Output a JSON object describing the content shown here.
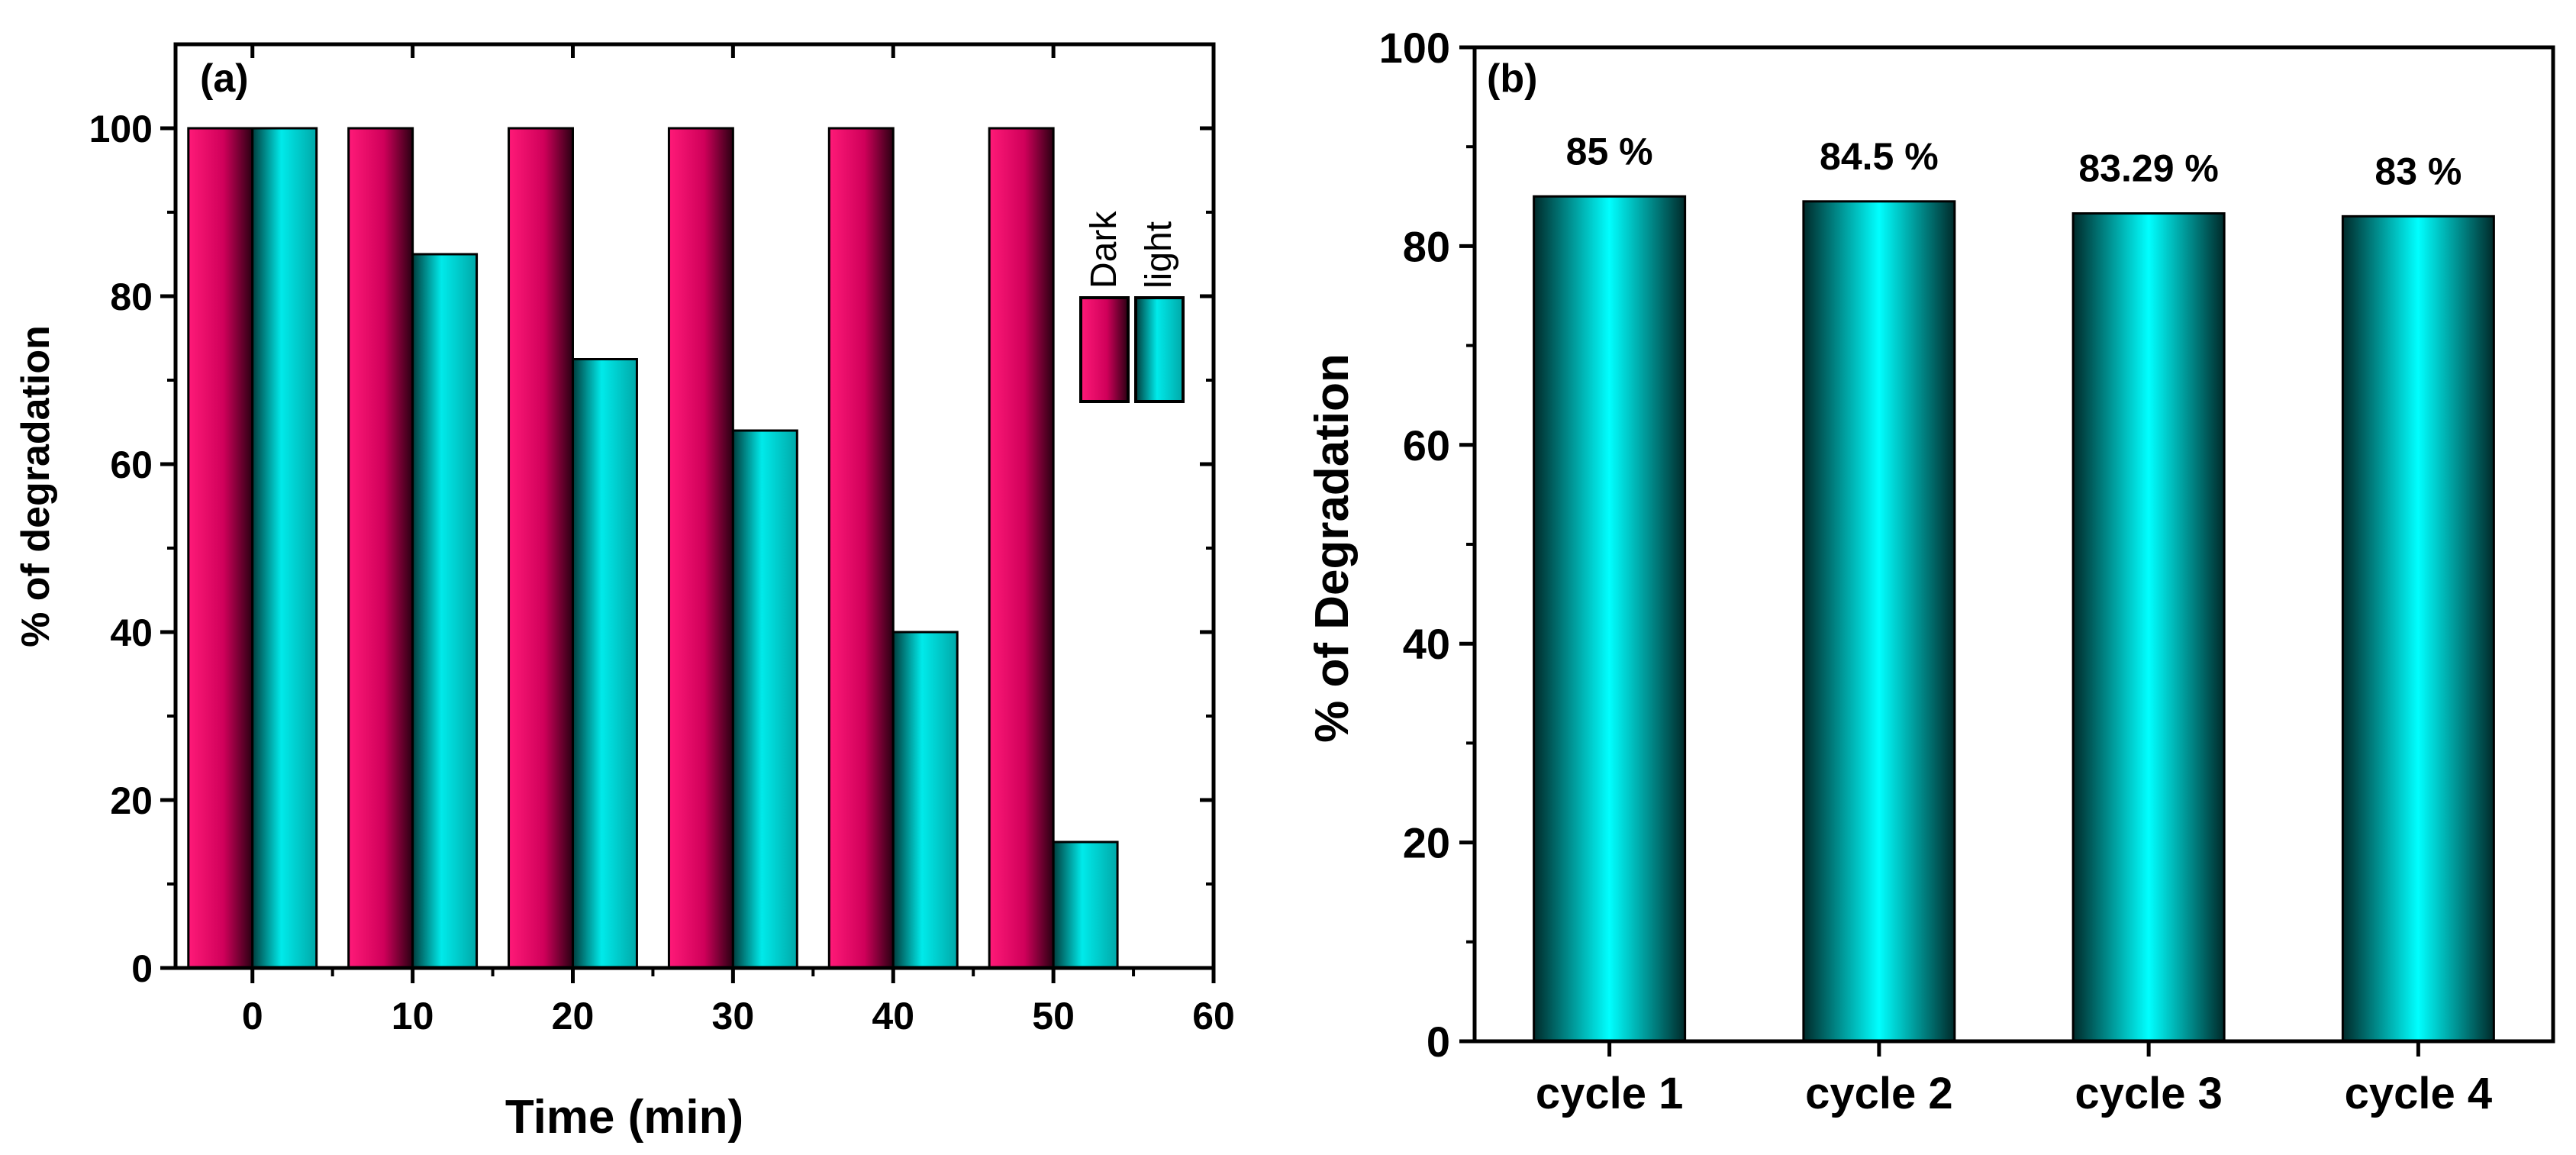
{
  "chart_data": [
    {
      "type": "bar",
      "panel_label": "(a)",
      "xlabel": "Time (min)",
      "ylabel": "% of degradation",
      "x": [
        0,
        10,
        20,
        30,
        40,
        50
      ],
      "xlim": [
        -4.8,
        60
      ],
      "xticks": [
        0,
        10,
        20,
        30,
        40,
        50,
        60
      ],
      "xtick_labels": [
        "0",
        "10",
        "20",
        "30",
        "40",
        "50",
        "60"
      ],
      "ylim": [
        0,
        110
      ],
      "yticks": [
        0,
        20,
        40,
        60,
        80,
        100
      ],
      "ytick_labels": [
        "0",
        "20",
        "40",
        "60",
        "80",
        "100"
      ],
      "series": [
        {
          "name": "Dark",
          "values": [
            100,
            100,
            100,
            100,
            100,
            100
          ],
          "color": "#e6005c"
        },
        {
          "name": "light",
          "values": [
            100,
            85,
            72.5,
            64,
            40,
            15
          ],
          "color": "#00f0f0"
        }
      ],
      "legend": {
        "position": "right",
        "orientation": "vertical-text",
        "entries": [
          "Dark",
          "light"
        ]
      },
      "grid": false
    },
    {
      "type": "bar",
      "panel_label": "(b)",
      "xlabel": "",
      "ylabel": "% of Degradation",
      "categories": [
        "cycle 1",
        "cycle 2",
        "cycle 3",
        "cycle 4"
      ],
      "values": [
        85,
        84.5,
        83.29,
        83
      ],
      "data_labels": [
        "85 %",
        "84.5 %",
        "83.29 %",
        "83 %"
      ],
      "ylim": [
        0,
        100
      ],
      "yticks": [
        0,
        20,
        40,
        60,
        80,
        100
      ],
      "ytick_labels": [
        "0",
        "20",
        "40",
        "60",
        "80",
        "100"
      ],
      "color": "#00f0f0",
      "grid": false
    }
  ]
}
